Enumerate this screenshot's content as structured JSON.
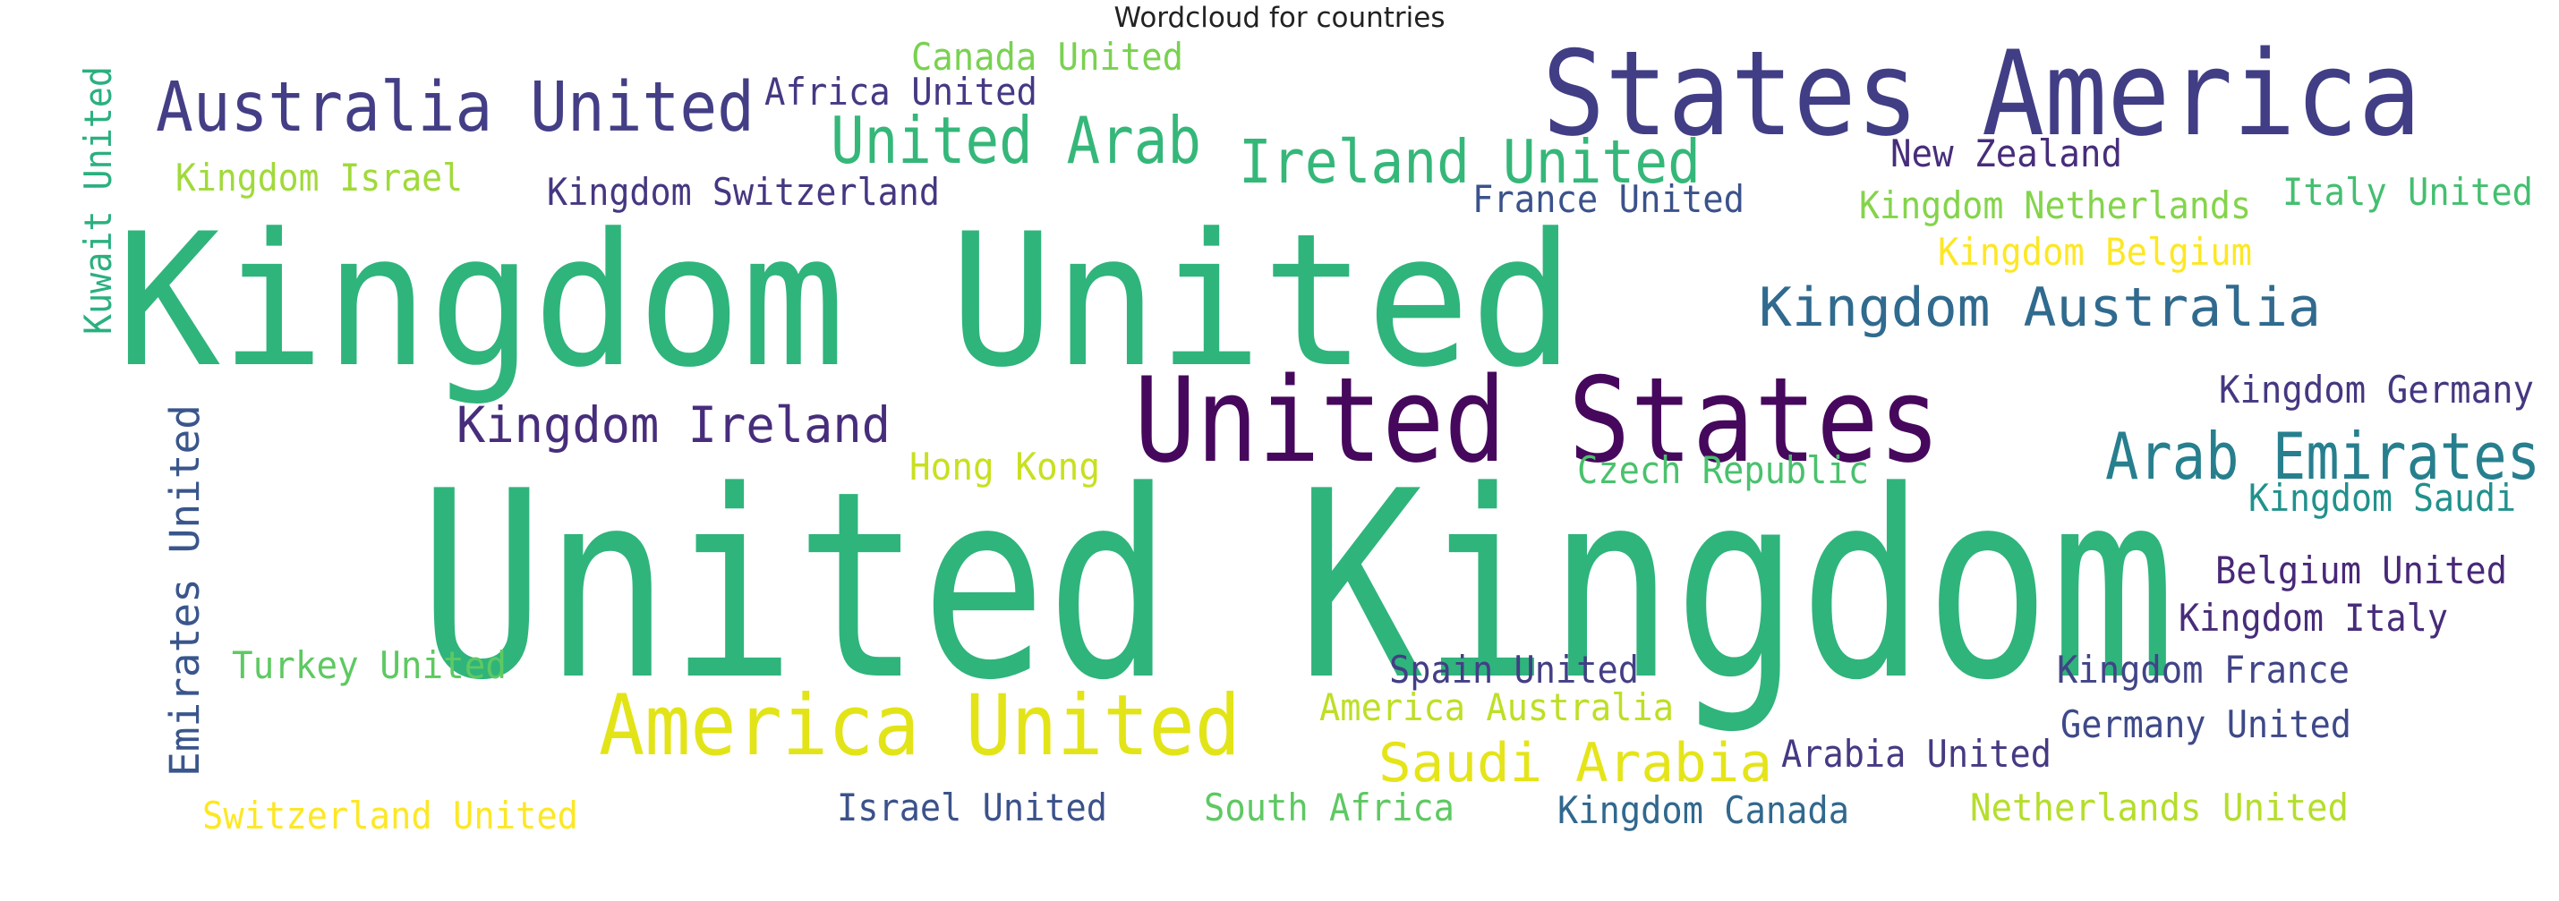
{
  "chart_data": {
    "type": "wordcloud",
    "title": "Wordcloud for countries",
    "words": [
      {
        "text": "United Kingdom",
        "color": "#2fb47c"
      },
      {
        "text": "Kingdom United",
        "color": "#2fb47c"
      },
      {
        "text": "United States",
        "color": "#46085c"
      },
      {
        "text": "States America",
        "color": "#413e85"
      },
      {
        "text": "America United",
        "color": "#e2e418"
      },
      {
        "text": "Australia United",
        "color": "#433e85"
      },
      {
        "text": "Arab Emirates",
        "color": "#277f8e"
      },
      {
        "text": "Ireland United",
        "color": "#35b779"
      },
      {
        "text": "United Arab",
        "color": "#35b779"
      },
      {
        "text": "Kingdom Australia",
        "color": "#306a8e"
      },
      {
        "text": "Saudi Arabia",
        "color": "#e5e419"
      },
      {
        "text": "Kingdom Ireland",
        "color": "#472d7b"
      },
      {
        "text": "Emirates United",
        "color": "#39568c"
      },
      {
        "text": "Kingdom Switzerland",
        "color": "#453781"
      },
      {
        "text": "Kingdom Netherlands",
        "color": "#84d44b"
      },
      {
        "text": "Kingdom Israel",
        "color": "#a0da39"
      },
      {
        "text": "Italy United",
        "color": "#44bf70"
      },
      {
        "text": "Kuwait United",
        "color": "#2ab07f"
      },
      {
        "text": "Africa United",
        "color": "#443983"
      },
      {
        "text": "Canada United",
        "color": "#7ad151"
      },
      {
        "text": "New Zealand",
        "color": "#472d7b"
      },
      {
        "text": "France United",
        "color": "#3b528b"
      },
      {
        "text": "Kingdom Belgium",
        "color": "#fde725"
      },
      {
        "text": "Kingdom Germany",
        "color": "#453781"
      },
      {
        "text": "Hong Kong",
        "color": "#c8e020"
      },
      {
        "text": "Czech Republic",
        "color": "#4ac16d"
      },
      {
        "text": "Kingdom Saudi",
        "color": "#21918c"
      },
      {
        "text": "Belgium United",
        "color": "#482878"
      },
      {
        "text": "Kingdom Italy",
        "color": "#472c7a"
      },
      {
        "text": "Turkey United",
        "color": "#5ec962"
      },
      {
        "text": "Spain United",
        "color": "#433e85"
      },
      {
        "text": "Kingdom France",
        "color": "#414487"
      },
      {
        "text": "America Australia",
        "color": "#bddf26"
      },
      {
        "text": "Germany United",
        "color": "#3e4989"
      },
      {
        "text": "Arabia United",
        "color": "#443a83"
      },
      {
        "text": "Switzerland United",
        "color": "#fde725"
      },
      {
        "text": "Israel United",
        "color": "#3b528b"
      },
      {
        "text": "South Africa",
        "color": "#5ec962"
      },
      {
        "text": "Kingdom Canada",
        "color": "#31688e"
      },
      {
        "text": "Netherlands United",
        "color": "#b5de2b"
      }
    ]
  }
}
